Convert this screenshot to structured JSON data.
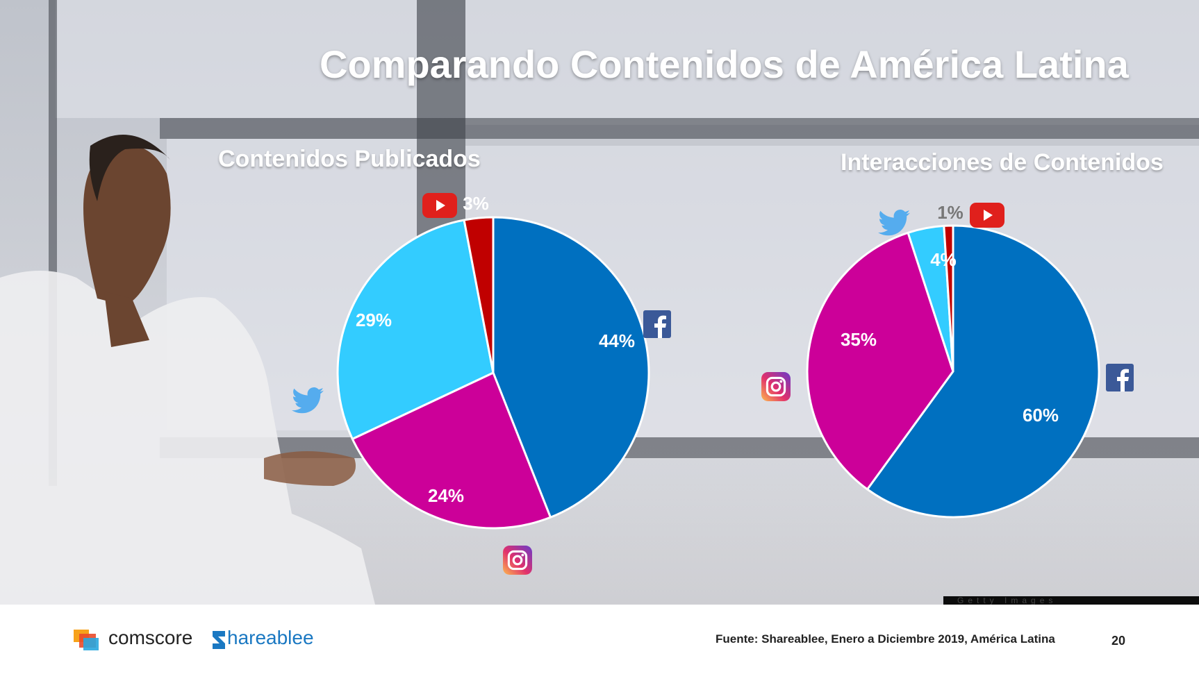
{
  "slide": {
    "title": "Comparando Contenidos de América Latina",
    "watermark": "Getty Images"
  },
  "footer": {
    "brand1": "comscore",
    "brand2": "hareablee",
    "source": "Fuente: Shareablee, Enero a Diciembre 2019, América Latina",
    "page": "20"
  },
  "colors": {
    "facebook": "#0070c0",
    "instagram": "#cc0099",
    "twitter": "#33ccff",
    "youtube": "#c00000"
  },
  "chart_data": [
    {
      "type": "pie",
      "title": "Contenidos Publicados",
      "categories": [
        "Facebook",
        "Instagram",
        "Twitter",
        "YouTube"
      ],
      "values": [
        44,
        24,
        29,
        3
      ],
      "labels": [
        "44%",
        "24%",
        "29%",
        "3%"
      ],
      "icons": [
        "facebook-icon",
        "instagram-icon",
        "twitter-icon",
        "youtube-icon"
      ]
    },
    {
      "type": "pie",
      "title": "Interacciones de Contenidos",
      "categories": [
        "Facebook",
        "Instagram",
        "Twitter",
        "YouTube"
      ],
      "values": [
        60,
        35,
        4,
        1
      ],
      "labels": [
        "60%",
        "35%",
        "4%",
        "1%"
      ],
      "icons": [
        "facebook-icon",
        "instagram-icon",
        "twitter-icon",
        "youtube-icon"
      ]
    }
  ]
}
